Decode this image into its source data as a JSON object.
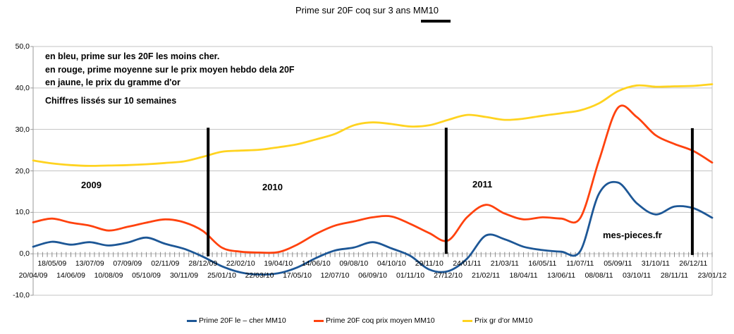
{
  "title": {
    "text": "Prime sur 20F coq sur 3 ans MM10"
  },
  "annotations": {
    "line1": "en bleu, prime sur les 20F les moins cher.",
    "line2": "en rouge, prime moyenne sur le prix moyen hebdo dela 20F",
    "line3": "en jaune, le prix du gramme d'or",
    "line4": "Chiffres lissés sur 10 semaines",
    "year_2009": "2009",
    "year_2010": "2010",
    "year_2011": "2011",
    "watermark": "mes-pieces.fr"
  },
  "legend": [
    {
      "label": "Prime 20F le – cher MM10",
      "color": "#1D5796"
    },
    {
      "label": "Prime 20F coq prix moyen MM10",
      "color": "#FF420E"
    },
    {
      "label": "Prix gr d'or MM10",
      "color": "#FFD320"
    }
  ],
  "chart_data": {
    "type": "line",
    "title": "Prime sur 20F coq sur 3 ans MM10",
    "xlabel": "",
    "ylabel": "",
    "ylim": [
      -10,
      50
    ],
    "grid": true,
    "legend_position": "bottom",
    "y_ticks": [
      {
        "label": "50,0",
        "value": 50
      },
      {
        "label": "40,0",
        "value": 40
      },
      {
        "label": "30,0",
        "value": 30
      },
      {
        "label": "20,0",
        "value": 20
      },
      {
        "label": "10,0",
        "value": 10
      },
      {
        "label": "0,0",
        "value": 0
      },
      {
        "label": "-10,0",
        "value": -10
      }
    ],
    "x_tick_labels": [
      "20/04/09",
      "18/05/09",
      "14/06/09",
      "13/07/09",
      "10/08/09",
      "07/09/09",
      "05/10/09",
      "02/11/09",
      "30/11/09",
      "28/12/09",
      "25/01/10",
      "22/02/10",
      "22/03/10",
      "19/04/10",
      "17/05/10",
      "14/06/10",
      "12/07/10",
      "09/08/10",
      "06/09/10",
      "04/10/10",
      "01/11/10",
      "29/11/10",
      "27/12/10",
      "24/01/11",
      "21/02/11",
      "21/03/11",
      "18/04/11",
      "16/05/11",
      "13/06/11",
      "11/07/11",
      "08/08/11",
      "05/09/11",
      "03/10/11",
      "31/10/11",
      "28/11/11",
      "26/12/11",
      "23/01/12"
    ],
    "series": [
      {
        "name": "Prime 20F le – cher MM10",
        "color": "#1D5796",
        "values": [
          1.7,
          2.9,
          2.2,
          2.8,
          2.0,
          2.7,
          3.9,
          2.4,
          1.2,
          -0.7,
          -3.0,
          -4.5,
          -5.0,
          -4.7,
          -3.3,
          -1.0,
          0.8,
          1.5,
          2.8,
          1.3,
          -0.5,
          -3.8,
          -4.2,
          -1.2,
          4.4,
          3.5,
          1.7,
          0.9,
          0.5,
          0.6,
          14.5,
          17.2,
          12.2,
          9.5,
          11.4,
          11.0,
          8.7
        ]
      },
      {
        "name": "Prime 20F coq prix moyen MM10",
        "color": "#FF420E",
        "values": [
          7.6,
          8.5,
          7.5,
          6.8,
          5.6,
          6.5,
          7.5,
          8.3,
          7.6,
          5.5,
          1.5,
          0.5,
          0.3,
          0.4,
          2.2,
          4.8,
          6.8,
          7.8,
          8.8,
          9.0,
          7.2,
          5.0,
          3.2,
          8.8,
          11.8,
          9.7,
          8.3,
          8.8,
          8.5,
          8.6,
          22.5,
          35.2,
          33.0,
          28.6,
          26.5,
          24.8,
          22.0
        ]
      },
      {
        "name": "Prix gr d'or MM10",
        "color": "#FFD320",
        "values": [
          22.5,
          21.8,
          21.4,
          21.2,
          21.3,
          21.4,
          21.6,
          21.9,
          22.3,
          23.4,
          24.6,
          24.9,
          25.1,
          25.7,
          26.4,
          27.6,
          28.9,
          31.0,
          31.7,
          31.3,
          30.7,
          31.0,
          32.3,
          33.5,
          33.0,
          32.3,
          32.6,
          33.3,
          33.9,
          34.6,
          36.3,
          39.2,
          40.6,
          40.3,
          40.4,
          40.5,
          40.9
        ]
      }
    ],
    "year_separators": [
      {
        "x_index": 9.28,
        "top": 30.4,
        "bottom": -0.6
      },
      {
        "x_index": 21.9,
        "top": 30.4,
        "bottom": 0.0
      },
      {
        "x_index": 34.95,
        "top": 30.3,
        "bottom": -0.3
      }
    ]
  }
}
